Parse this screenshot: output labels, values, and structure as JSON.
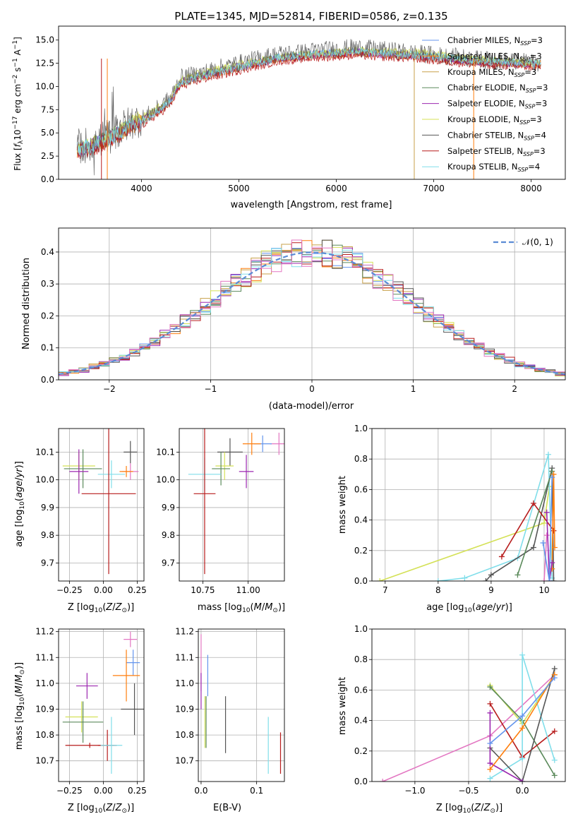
{
  "figure": {
    "title": "PLATE=1345, MJD=52814, FIBERID=0586, z=0.135"
  },
  "chart_data": [
    {
      "id": "spectrum",
      "type": "line",
      "title": "PLATE=1345, MJD=52814, FIBERID=0586, z=0.135",
      "xlabel": "wavelength [Angstrom, rest frame]",
      "ylabel": "Flux [f_λ 10^-17 erg cm^-2 s^-1 A^-1]",
      "xlim": [
        3150,
        8350
      ],
      "ylim": [
        0,
        16.5
      ],
      "xticks": [
        4000,
        5000,
        6000,
        7000,
        8000
      ],
      "yticks": [
        0.0,
        2.5,
        5.0,
        7.5,
        10.0,
        12.5,
        15.0
      ],
      "legend_position": "right",
      "x": [
        3340,
        3500,
        3700,
        3900,
        4000,
        4200,
        4300,
        4400,
        4600,
        4800,
        5000,
        5200,
        5400,
        5600,
        5800,
        6000,
        6200,
        6400,
        6600,
        6800,
        7000,
        7200,
        7400,
        7600,
        7800,
        8000,
        8100
      ],
      "series": [
        {
          "name": "Chabrier MILES, N_SSP=3",
          "color": "#6495ed",
          "values": [
            3.0,
            3.6,
            4.6,
            5.9,
            6.3,
            7.6,
            8.5,
            10.4,
            11.1,
            11.6,
            12.1,
            12.6,
            13.1,
            13.3,
            13.5,
            13.6,
            13.8,
            13.6,
            13.5,
            13.4,
            13.2,
            13.0,
            12.8,
            12.7,
            12.6,
            12.5,
            12.5
          ]
        },
        {
          "name": "Salpeter MILES, N_SSP=3",
          "color": "#ff7f0e",
          "values": [
            3.1,
            3.7,
            4.5,
            5.8,
            6.2,
            7.5,
            8.4,
            10.3,
            11.0,
            11.5,
            12.0,
            12.5,
            13.0,
            13.2,
            13.4,
            13.5,
            13.7,
            13.5,
            13.4,
            13.3,
            13.1,
            12.9,
            12.7,
            12.6,
            12.5,
            12.4,
            12.4
          ]
        },
        {
          "name": "Kroupa MILES, N_SSP=3",
          "color": "#c8a04a",
          "values": [
            3.0,
            3.6,
            4.5,
            5.8,
            6.2,
            7.5,
            8.4,
            10.3,
            11.0,
            11.5,
            12.0,
            12.5,
            13.0,
            13.2,
            13.4,
            13.5,
            13.7,
            13.5,
            13.4,
            13.3,
            13.1,
            12.9,
            12.7,
            12.6,
            12.5,
            12.4,
            12.4
          ]
        },
        {
          "name": "Chabrier ELODIE, N_SSP=3",
          "color": "#5b8a5b",
          "values": [
            3.1,
            3.7,
            4.6,
            5.9,
            6.4,
            7.7,
            8.6,
            10.5,
            11.2,
            11.7,
            12.2,
            12.6,
            13.1,
            13.3,
            13.5,
            13.6,
            13.8,
            13.6,
            13.5,
            13.4,
            13.2,
            13.0,
            12.8,
            12.7,
            12.6,
            12.5,
            12.5
          ]
        },
        {
          "name": "Salpeter ELODIE, N_SSP=3",
          "color": "#9c27b0",
          "values": [
            3.0,
            3.6,
            4.5,
            5.8,
            6.3,
            7.6,
            8.5,
            10.4,
            11.1,
            11.6,
            12.1,
            12.5,
            13.0,
            13.2,
            13.4,
            13.5,
            13.7,
            13.5,
            13.4,
            13.3,
            13.1,
            12.9,
            12.7,
            12.6,
            12.5,
            12.4,
            12.4
          ]
        },
        {
          "name": "Kroupa ELODIE, N_SSP=3",
          "color": "#d4e157",
          "values": [
            3.2,
            3.8,
            4.7,
            6.1,
            6.6,
            7.9,
            8.8,
            10.7,
            11.4,
            11.9,
            12.4,
            12.8,
            13.2,
            13.4,
            13.6,
            13.7,
            13.9,
            13.8,
            13.7,
            13.7,
            13.5,
            13.2,
            13.0,
            12.8,
            12.7,
            12.6,
            12.6
          ]
        },
        {
          "name": "Chabrier STELIB, N_SSP=4",
          "color": "#555555",
          "values": [
            3.5,
            3.9,
            4.8,
            6.2,
            6.5,
            7.8,
            8.8,
            10.9,
            11.4,
            12.0,
            12.5,
            13.0,
            13.5,
            13.6,
            13.9,
            14.0,
            14.2,
            14.0,
            13.8,
            13.6,
            13.4,
            13.2,
            13.0,
            12.8,
            12.7,
            12.6,
            12.6
          ]
        },
        {
          "name": "Salpeter STELIB, N_SSP=3",
          "color": "#b71c1c",
          "values": [
            3.0,
            3.4,
            4.2,
            5.5,
            5.8,
            7.2,
            8.1,
            10.0,
            10.7,
            11.2,
            11.7,
            12.2,
            12.7,
            12.9,
            13.1,
            13.2,
            13.4,
            13.2,
            13.1,
            13.0,
            12.8,
            12.6,
            12.4,
            12.3,
            12.2,
            12.1,
            12.1
          ]
        },
        {
          "name": "Kroupa STELIB, N_SSP=4",
          "color": "#80deea",
          "values": [
            3.1,
            3.7,
            4.6,
            5.9,
            6.3,
            7.6,
            8.5,
            10.4,
            11.1,
            11.6,
            12.1,
            12.6,
            13.1,
            13.3,
            13.5,
            13.6,
            13.8,
            13.6,
            13.5,
            13.4,
            13.2,
            13.0,
            12.8,
            12.7,
            12.6,
            12.5,
            12.5
          ]
        }
      ]
    },
    {
      "id": "residuals",
      "type": "line",
      "xlabel": "(data-model)/error",
      "ylabel": "Normed distribution",
      "xlim": [
        -2.5,
        2.5
      ],
      "ylim": [
        0,
        0.475
      ],
      "xticks": [
        -2,
        -1,
        0,
        1,
        2
      ],
      "xtick_labels": [
        "−2",
        "−1",
        "0",
        "1",
        "2"
      ],
      "yticks": [
        0.0,
        0.1,
        0.2,
        0.3,
        0.4
      ],
      "grid": true,
      "legend_position": "top-right",
      "legend": "𝒩(0, 1)",
      "reference_curve": {
        "name": "N(0,1)",
        "mu": 0,
        "sigma": 1,
        "color": "#5b8bd5"
      },
      "histogram_colors": [
        "#6495ed",
        "#ff7f0e",
        "#c8a04a",
        "#5b8a5b",
        "#9c27b0",
        "#d4e157",
        "#555555",
        "#b71c1c",
        "#80deea",
        "#e377c2"
      ],
      "bin_edges_range": [
        -2.5,
        2.5
      ],
      "bin_width": 0.1
    },
    {
      "id": "age_vs_Z",
      "type": "scatter",
      "xlabel": "Z [log10(Z/Z⊙)]",
      "ylabel": "age [log10(age/yr)]",
      "xlim": [
        -0.33,
        0.3
      ],
      "ylim": [
        9.635,
        10.185
      ],
      "xticks": [
        -0.25,
        0.0,
        0.25
      ],
      "xtick_labels": [
        "−0.25",
        "0.00",
        "0.25"
      ],
      "yticks": [
        9.7,
        9.8,
        9.9,
        10.0,
        10.1
      ],
      "grid": true,
      "points": [
        {
          "x": 0.2,
          "y": 10.03,
          "xerr": 0.06,
          "yerr": 0.03,
          "color": "#e377c2"
        },
        {
          "x": 0.17,
          "y": 10.03,
          "xerr": 0.05,
          "yerr": 0.02,
          "color": "#ff7f0e"
        },
        {
          "x": 0.2,
          "y": 10.1,
          "xerr": 0.05,
          "yerr": 0.04,
          "color": "#555555"
        },
        {
          "x": -0.18,
          "y": 10.05,
          "xerr": 0.12,
          "yerr": 0.05,
          "color": "#d4e157"
        },
        {
          "x": -0.15,
          "y": 10.04,
          "xerr": 0.14,
          "yerr": 0.07,
          "color": "#5b8a5b"
        },
        {
          "x": -0.18,
          "y": 10.03,
          "xerr": 0.07,
          "yerr": 0.08,
          "color": "#9c27b0"
        },
        {
          "x": 0.06,
          "y": 10.02,
          "xerr": 0.1,
          "yerr": 0.05,
          "color": "#80deea"
        },
        {
          "x": 0.04,
          "y": 9.95,
          "xerr": 0.2,
          "yerr": 0.29,
          "color": "#b71c1c"
        }
      ]
    },
    {
      "id": "age_vs_mass",
      "type": "scatter",
      "xlabel": "mass [log10(M/M⊙)]",
      "ylabel": "",
      "xlim": [
        10.62,
        11.2
      ],
      "ylim": [
        9.635,
        10.185
      ],
      "xticks": [
        10.75,
        11.0
      ],
      "xtick_labels": [
        "10.75",
        "11.00"
      ],
      "yticks": [
        9.7,
        9.8,
        9.9,
        10.0,
        10.1
      ],
      "grid": true,
      "points": [
        {
          "x": 11.17,
          "y": 10.13,
          "xerr": 0.05,
          "yerr": 0.04,
          "color": "#e377c2"
        },
        {
          "x": 11.08,
          "y": 10.13,
          "xerr": 0.05,
          "yerr": 0.03,
          "color": "#6495ed"
        },
        {
          "x": 11.02,
          "y": 10.13,
          "xerr": 0.05,
          "yerr": 0.04,
          "color": "#ff7f0e"
        },
        {
          "x": 10.9,
          "y": 10.1,
          "xerr": 0.07,
          "yerr": 0.05,
          "color": "#555555"
        },
        {
          "x": 10.87,
          "y": 10.05,
          "xerr": 0.05,
          "yerr": 0.05,
          "color": "#d4e157"
        },
        {
          "x": 10.85,
          "y": 10.04,
          "xerr": 0.05,
          "yerr": 0.06,
          "color": "#5b8a5b"
        },
        {
          "x": 10.99,
          "y": 10.03,
          "xerr": 0.04,
          "yerr": 0.06,
          "color": "#9c27b0"
        },
        {
          "x": 10.76,
          "y": 10.02,
          "xerr": 0.09,
          "yerr": 0.06,
          "color": "#80deea"
        },
        {
          "x": 10.76,
          "y": 9.95,
          "xerr": 0.06,
          "yerr": 0.29,
          "color": "#b71c1c"
        }
      ]
    },
    {
      "id": "massweight_vs_age",
      "type": "line",
      "xlabel": "age [log10(age/yr)]",
      "ylabel": "mass weight",
      "xlim": [
        6.75,
        10.4
      ],
      "ylim": [
        0,
        1.0
      ],
      "xticks": [
        7,
        8,
        9,
        10
      ],
      "yticks": [
        0.0,
        0.2,
        0.4,
        0.6,
        0.8,
        1.0
      ],
      "grid": true,
      "series": [
        {
          "color": "#d4e157",
          "x": [
            6.9,
            10.0,
            10.1
          ],
          "values": [
            0.0,
            0.38,
            0.62
          ]
        },
        {
          "color": "#80deea",
          "x": [
            8.0,
            8.5,
            9.5,
            10.08,
            10.15
          ],
          "values": [
            0.0,
            0.02,
            0.15,
            0.83,
            0.02
          ]
        },
        {
          "color": "#555555",
          "x": [
            8.9,
            9.0,
            9.8,
            10.15,
            10.18
          ],
          "values": [
            0.0,
            0.04,
            0.22,
            0.74,
            0.0
          ]
        },
        {
          "color": "#b71c1c",
          "x": [
            9.2,
            9.8,
            10.18
          ],
          "values": [
            0.16,
            0.51,
            0.33
          ]
        },
        {
          "color": "#5b8a5b",
          "x": [
            9.5,
            10.15
          ],
          "values": [
            0.04,
            0.72
          ]
        },
        {
          "color": "#ff7f0e",
          "x": [
            10.15,
            10.18,
            10.2
          ],
          "values": [
            0.08,
            0.7,
            0.22
          ]
        },
        {
          "color": "#e377c2",
          "x": [
            10.0,
            10.05
          ],
          "values": [
            0.0,
            0.3
          ]
        },
        {
          "color": "#9c27b0",
          "x": [
            10.05,
            10.1,
            10.15
          ],
          "values": [
            0.45,
            0.0,
            0.12
          ]
        },
        {
          "color": "#6495ed",
          "x": [
            9.98,
            10.1,
            10.15
          ],
          "values": [
            0.25,
            0.0,
            0.68
          ]
        }
      ]
    },
    {
      "id": "mass_vs_Z",
      "type": "scatter",
      "xlabel": "Z [log10(Z/Z⊙)]",
      "ylabel": "mass [log10(M/M⊙)]",
      "xlim": [
        -0.33,
        0.3
      ],
      "ylim": [
        10.62,
        11.21
      ],
      "xticks": [
        -0.25,
        0.0,
        0.25
      ],
      "xtick_labels": [
        "−0.25",
        "0.00",
        "0.25"
      ],
      "yticks": [
        10.7,
        10.8,
        10.9,
        11.0,
        11.1,
        11.2
      ],
      "grid": true,
      "points": [
        {
          "x": 0.2,
          "y": 11.17,
          "xerr": 0.05,
          "yerr": 0.03,
          "color": "#e377c2"
        },
        {
          "x": 0.22,
          "y": 11.08,
          "xerr": 0.05,
          "yerr": 0.05,
          "color": "#6495ed"
        },
        {
          "x": 0.17,
          "y": 11.03,
          "xerr": 0.1,
          "yerr": 0.1,
          "color": "#ff7f0e"
        },
        {
          "x": -0.12,
          "y": 10.99,
          "xerr": 0.08,
          "yerr": 0.05,
          "color": "#9c27b0"
        },
        {
          "x": 0.23,
          "y": 10.9,
          "xerr": 0.1,
          "yerr": 0.1,
          "color": "#555555"
        },
        {
          "x": -0.16,
          "y": 10.87,
          "xerr": 0.12,
          "yerr": 0.06,
          "color": "#d4e157"
        },
        {
          "x": -0.15,
          "y": 10.85,
          "xerr": 0.15,
          "yerr": 0.08,
          "color": "#5b8a5b"
        },
        {
          "x": -0.1,
          "y": 10.76,
          "xerr": 0.18,
          "yerr": 0.01,
          "color": "#b71c1c"
        },
        {
          "x": 0.03,
          "y": 10.76,
          "xerr": 0.07,
          "yerr": 0.06,
          "color": "#b71c1c"
        },
        {
          "x": 0.06,
          "y": 10.76,
          "xerr": 0.08,
          "yerr": 0.11,
          "color": "#80deea"
        }
      ]
    },
    {
      "id": "mass_vs_EBV",
      "type": "scatter",
      "xlabel": "E(B-V)",
      "ylabel": "",
      "xlim": [
        -0.005,
        0.15
      ],
      "ylim": [
        10.62,
        11.21
      ],
      "xticks": [
        0.0,
        0.1
      ],
      "xtick_labels": [
        "0.0",
        "0.1"
      ],
      "yticks": [
        10.7,
        10.8,
        10.9,
        11.0,
        11.1,
        11.2
      ],
      "grid": true,
      "points": [
        {
          "x": 0.0,
          "y": 11.08,
          "yerr": 0.11,
          "color": "#e377c2"
        },
        {
          "x": 0.0,
          "y": 10.97,
          "yerr": 0.07,
          "color": "#9c27b0"
        },
        {
          "x": 0.012,
          "y": 11.03,
          "yerr": 0.08,
          "color": "#6495ed"
        },
        {
          "x": 0.007,
          "y": 10.85,
          "yerr": 0.1,
          "color": "#d4e157"
        },
        {
          "x": 0.009,
          "y": 10.85,
          "yerr": 0.1,
          "color": "#5b8a5b"
        },
        {
          "x": 0.044,
          "y": 10.84,
          "yerr": 0.11,
          "color": "#555555"
        },
        {
          "x": 0.121,
          "y": 10.76,
          "yerr": 0.11,
          "color": "#80deea"
        },
        {
          "x": 0.143,
          "y": 10.73,
          "yerr": 0.08,
          "color": "#b71c1c"
        }
      ]
    },
    {
      "id": "massweight_vs_Z",
      "type": "line",
      "xlabel": "Z [log10(Z/Z⊙)]",
      "ylabel": "mass weight",
      "xlim": [
        -1.4,
        0.4
      ],
      "ylim": [
        0,
        1.0
      ],
      "xticks": [
        -1.0,
        -0.5,
        0.0
      ],
      "xtick_labels": [
        "−1.0",
        "−0.5",
        "0.0"
      ],
      "yticks": [
        0.0,
        0.2,
        0.4,
        0.6,
        0.8,
        1.0
      ],
      "grid": true,
      "series": [
        {
          "color": "#e377c2",
          "x": [
            -1.3,
            -0.3,
            0.3
          ],
          "values": [
            0.0,
            0.3,
            0.7
          ]
        },
        {
          "color": "#d4e157",
          "x": [
            -0.3,
            0.0,
            0.3
          ],
          "values": [
            0.63,
            0.38,
            0.7
          ]
        },
        {
          "color": "#5b8a5b",
          "x": [
            -0.3,
            0.0,
            0.3
          ],
          "values": [
            0.62,
            0.4,
            0.04
          ]
        },
        {
          "color": "#b71c1c",
          "x": [
            -0.3,
            0.0,
            0.3
          ],
          "values": [
            0.51,
            0.16,
            0.33
          ]
        },
        {
          "color": "#80deea",
          "x": [
            -0.3,
            0.0,
            0.0,
            0.3
          ],
          "values": [
            0.02,
            0.15,
            0.83,
            0.14
          ]
        },
        {
          "color": "#555555",
          "x": [
            -0.3,
            0.0,
            0.3
          ],
          "values": [
            0.22,
            0.0,
            0.74
          ]
        },
        {
          "color": "#9c27b0",
          "x": [
            -0.3,
            -0.3,
            0.0
          ],
          "values": [
            0.45,
            0.12,
            0.0
          ]
        },
        {
          "color": "#ff7f0e",
          "x": [
            -0.3,
            0.0,
            0.3
          ],
          "values": [
            0.08,
            0.35,
            0.7
          ]
        },
        {
          "color": "#6495ed",
          "x": [
            -0.3,
            0.0,
            0.3
          ],
          "values": [
            0.25,
            0.43,
            0.68
          ]
        }
      ]
    }
  ]
}
